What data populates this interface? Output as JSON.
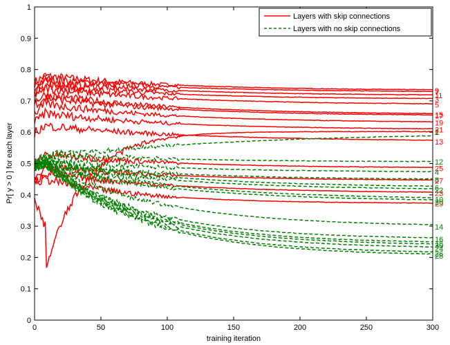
{
  "chart_data": {
    "type": "line",
    "xlabel": "training iteration",
    "ylabel": "Pr[ y > 0 ] for each layer",
    "xlim": [
      0,
      300
    ],
    "ylim": [
      0,
      1
    ],
    "xticks": [
      "0",
      "50",
      "100",
      "150",
      "200",
      "250",
      "300"
    ],
    "yticks": [
      "0",
      "0.1",
      "0.2",
      "0.3",
      "0.4",
      "0.5",
      "0.6",
      "0.7",
      "0.8",
      "0.9",
      "1"
    ],
    "grid": false,
    "legend_position": "top-right",
    "legend": [
      {
        "label": "Layers with skip connections",
        "color": "#ff0000",
        "style": "solid"
      },
      {
        "label": "Layers with no skip connections",
        "color": "#008000",
        "style": "dashed"
      }
    ],
    "series": [
      {
        "name": "9",
        "group": "skip",
        "start": 0.76,
        "final": 0.733,
        "peak": 0.78,
        "approach": 0.3
      },
      {
        "name": "7",
        "group": "skip",
        "start": 0.75,
        "final": 0.728,
        "peak": 0.77,
        "approach": 0.3
      },
      {
        "name": "11",
        "group": "skip",
        "start": 0.74,
        "final": 0.717,
        "peak": 0.76,
        "approach": 0.3
      },
      {
        "name": "3",
        "group": "skip",
        "start": 0.73,
        "final": 0.705,
        "peak": 0.75,
        "approach": 0.3
      },
      {
        "name": "5",
        "group": "skip",
        "start": 0.72,
        "final": 0.688,
        "peak": 0.74,
        "approach": 0.3
      },
      {
        "name": "15",
        "group": "skip",
        "start": 0.7,
        "final": 0.656,
        "peak": 0.72,
        "approach": 0.3
      },
      {
        "name": "17",
        "group": "skip",
        "start": 0.69,
        "final": 0.652,
        "peak": 0.71,
        "approach": 0.3
      },
      {
        "name": "19",
        "group": "skip",
        "start": 0.66,
        "final": 0.63,
        "peak": 0.69,
        "approach": 0.3
      },
      {
        "name": "21",
        "group": "skip",
        "start": 0.63,
        "final": 0.608,
        "peak": 0.66,
        "approach": 0.3
      },
      {
        "name": "13",
        "group": "skip",
        "start": 0.6,
        "final": 0.57,
        "peak": 0.62,
        "approach": 0.25
      },
      {
        "name": "25",
        "group": "skip",
        "start": 0.5,
        "final": 0.485,
        "peak": 0.53,
        "approach": 0.3
      },
      {
        "name": "27",
        "group": "skip",
        "start": 0.46,
        "final": 0.445,
        "peak": 0.49,
        "approach": 0.3
      },
      {
        "name": "23",
        "group": "skip",
        "start": 0.44,
        "final": 0.405,
        "peak": 0.47,
        "approach": 0.3
      },
      {
        "name": "29",
        "group": "skip",
        "start": 0.44,
        "final": 0.372,
        "peak": 0.45,
        "approach": 0.4
      },
      {
        "name": "1",
        "group": "skip",
        "start": 0.38,
        "final": 0.602,
        "peak": 0.3,
        "approach": 0.4
      },
      {
        "name": "2",
        "group": "noskip",
        "start": 0.49,
        "final": 0.6,
        "peak": 0.52,
        "approach": 0.2
      },
      {
        "name": "12",
        "group": "noskip",
        "start": 0.5,
        "final": 0.505,
        "peak": 0.53,
        "approach": 0.3
      },
      {
        "name": "4",
        "group": "noskip",
        "start": 0.49,
        "final": 0.472,
        "peak": 0.51,
        "approach": 0.3
      },
      {
        "name": "8",
        "group": "noskip",
        "start": 0.49,
        "final": 0.448,
        "peak": 0.5,
        "approach": 0.3
      },
      {
        "name": "6",
        "group": "noskip",
        "start": 0.5,
        "final": 0.423,
        "peak": 0.51,
        "approach": 0.3
      },
      {
        "name": "22",
        "group": "noskip",
        "start": 0.49,
        "final": 0.415,
        "peak": 0.5,
        "approach": 0.3
      },
      {
        "name": "10",
        "group": "noskip",
        "start": 0.49,
        "final": 0.385,
        "peak": 0.5,
        "approach": 0.3
      },
      {
        "name": "20",
        "group": "noskip",
        "start": 0.48,
        "final": 0.378,
        "peak": 0.49,
        "approach": 0.3
      },
      {
        "name": "14",
        "group": "noskip",
        "start": 0.49,
        "final": 0.298,
        "peak": 0.5,
        "approach": 0.35
      },
      {
        "name": "16",
        "group": "noskip",
        "start": 0.49,
        "final": 0.258,
        "peak": 0.5,
        "approach": 0.4
      },
      {
        "name": "18",
        "group": "noskip",
        "start": 0.49,
        "final": 0.245,
        "peak": 0.5,
        "approach": 0.4
      },
      {
        "name": "30",
        "group": "noskip",
        "start": 0.49,
        "final": 0.238,
        "peak": 0.5,
        "approach": 0.4
      },
      {
        "name": "24",
        "group": "noskip",
        "start": 0.49,
        "final": 0.228,
        "peak": 0.5,
        "approach": 0.4
      },
      {
        "name": "26",
        "group": "noskip",
        "start": 0.49,
        "final": 0.212,
        "peak": 0.5,
        "approach": 0.4
      },
      {
        "name": "28",
        "group": "noskip",
        "start": 0.49,
        "final": 0.205,
        "peak": 0.5,
        "approach": 0.4
      }
    ]
  },
  "colors": {
    "skip": "#ff0000",
    "noskip": "#008000",
    "axis": "#000000"
  }
}
